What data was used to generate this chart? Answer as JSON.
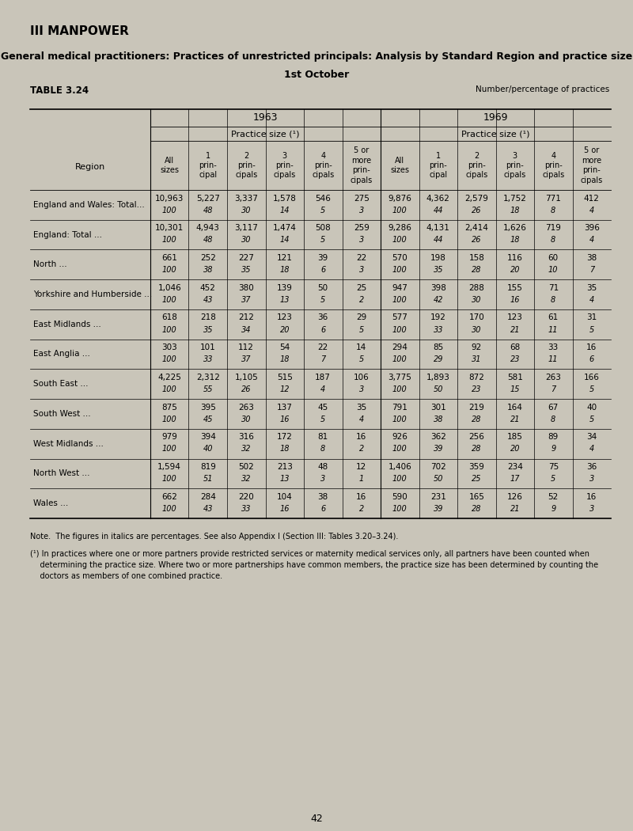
{
  "title_section": "III MANPOWER",
  "subtitle": "General medical practitioners: Practices of unrestricted principals: Analysis by Standard Region and practice size",
  "subtitle2": "1st October",
  "table_label": "TABLE 3.24",
  "number_label": "Number/percentage of practices",
  "bg_color": "#c9c5b9",
  "year1": "1963",
  "year2": "1969",
  "practice_size_label": "Practice size (¹)",
  "col_headers": [
    "All\nsizes",
    "1\nprin-\ncipal",
    "2\nprin-\ncipals",
    "3\nprin-\ncipals",
    "4\nprin-\ncipals",
    "5 or\nmore\nprin-\ncipals"
  ],
  "region_col_header": "Region",
  "regions": [
    "England and Wales: Total...",
    "England: Total ...",
    "North ...",
    "Yorkshire and Humberside ...",
    "East Midlands ...",
    "East Anglia ...",
    "South East ...",
    "South West ...",
    "West Midlands ...",
    "North West ...",
    "Wales ..."
  ],
  "data_1963": [
    [
      "10,963",
      "5,227",
      "3,337",
      "1,578",
      "546",
      "275"
    ],
    [
      "100",
      "48",
      "30",
      "14",
      "5",
      "3"
    ],
    [
      "10,301",
      "4,943",
      "3,117",
      "1,474",
      "508",
      "259"
    ],
    [
      "100",
      "48",
      "30",
      "14",
      "5",
      "3"
    ],
    [
      "661",
      "252",
      "227",
      "121",
      "39",
      "22"
    ],
    [
      "100",
      "38",
      "35",
      "18",
      "6",
      "3"
    ],
    [
      "1,046",
      "452",
      "380",
      "139",
      "50",
      "25"
    ],
    [
      "100",
      "43",
      "37",
      "13",
      "5",
      "2"
    ],
    [
      "618",
      "218",
      "212",
      "123",
      "36",
      "29"
    ],
    [
      "100",
      "35",
      "34",
      "20",
      "6",
      "5"
    ],
    [
      "303",
      "101",
      "112",
      "54",
      "22",
      "14"
    ],
    [
      "100",
      "33",
      "37",
      "18",
      "7",
      "5"
    ],
    [
      "4,225",
      "2,312",
      "1,105",
      "515",
      "187",
      "106"
    ],
    [
      "100",
      "55",
      "26",
      "12",
      "4",
      "3"
    ],
    [
      "875",
      "395",
      "263",
      "137",
      "45",
      "35"
    ],
    [
      "100",
      "45",
      "30",
      "16",
      "5",
      "4"
    ],
    [
      "979",
      "394",
      "316",
      "172",
      "81",
      "16"
    ],
    [
      "100",
      "40",
      "32",
      "18",
      "8",
      "2"
    ],
    [
      "1,594",
      "819",
      "502",
      "213",
      "48",
      "12"
    ],
    [
      "100",
      "51",
      "32",
      "13",
      "3",
      "1"
    ],
    [
      "662",
      "284",
      "220",
      "104",
      "38",
      "16"
    ],
    [
      "100",
      "43",
      "33",
      "16",
      "6",
      "2"
    ]
  ],
  "data_1969": [
    [
      "9,876",
      "4,362",
      "2,579",
      "1,752",
      "771",
      "412"
    ],
    [
      "100",
      "44",
      "26",
      "18",
      "8",
      "4"
    ],
    [
      "9,286",
      "4,131",
      "2,414",
      "1,626",
      "719",
      "396"
    ],
    [
      "100",
      "44",
      "26",
      "18",
      "8",
      "4"
    ],
    [
      "570",
      "198",
      "158",
      "116",
      "60",
      "38"
    ],
    [
      "100",
      "35",
      "28",
      "20",
      "10",
      "7"
    ],
    [
      "947",
      "398",
      "288",
      "155",
      "71",
      "35"
    ],
    [
      "100",
      "42",
      "30",
      "16",
      "8",
      "4"
    ],
    [
      "577",
      "192",
      "170",
      "123",
      "61",
      "31"
    ],
    [
      "100",
      "33",
      "30",
      "21",
      "11",
      "5"
    ],
    [
      "294",
      "85",
      "92",
      "68",
      "33",
      "16"
    ],
    [
      "100",
      "29",
      "31",
      "23",
      "11",
      "6"
    ],
    [
      "3,775",
      "1,893",
      "872",
      "581",
      "263",
      "166"
    ],
    [
      "100",
      "50",
      "23",
      "15",
      "7",
      "5"
    ],
    [
      "791",
      "301",
      "219",
      "164",
      "67",
      "40"
    ],
    [
      "100",
      "38",
      "28",
      "21",
      "8",
      "5"
    ],
    [
      "926",
      "362",
      "256",
      "185",
      "89",
      "34"
    ],
    [
      "100",
      "39",
      "28",
      "20",
      "9",
      "4"
    ],
    [
      "1,406",
      "702",
      "359",
      "234",
      "75",
      "36"
    ],
    [
      "100",
      "50",
      "25",
      "17",
      "5",
      "3"
    ],
    [
      "590",
      "231",
      "165",
      "126",
      "52",
      "16"
    ],
    [
      "100",
      "39",
      "28",
      "21",
      "9",
      "3"
    ]
  ],
  "note1": "Note.  The figures in italics are percentages. See also Appendix I (Section III: Tables 3.20–3.24).",
  "note2a": "(¹) In practices where one or more partners provide restricted services or maternity medical services only, all partners have been counted when",
  "note2b": "    determining the practice size. Where two or more partnerships have common members, the practice size has been determined by counting the",
  "note2c": "    doctors as members of one combined practice.",
  "page_number": "42"
}
